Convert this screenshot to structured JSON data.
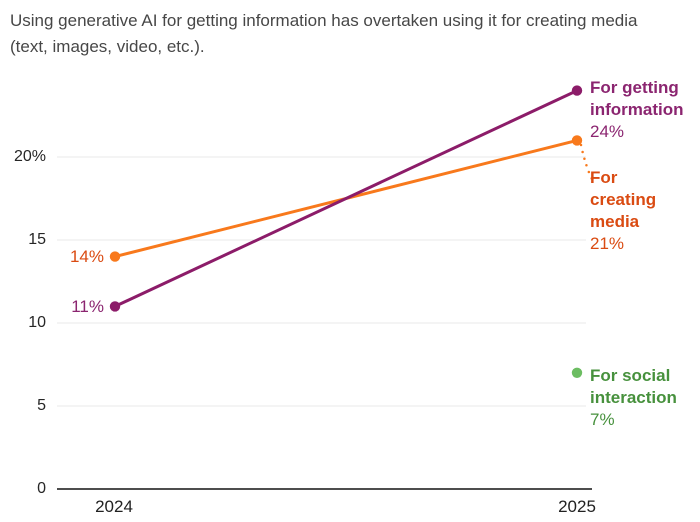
{
  "header": {
    "title_line1": "Using generative AI for getting information has overtaken using it for creating media",
    "title_line2": "(text, images, video, etc.)."
  },
  "chart_data": {
    "type": "line",
    "x": [
      "2024",
      "2025"
    ],
    "series": [
      {
        "name": "For getting information",
        "values": [
          11,
          24
        ],
        "color": "#8c1c69",
        "label_color": "#8b2570",
        "start_value_label": "11%",
        "end_value_label": "24%"
      },
      {
        "name": "For creating media",
        "values": [
          14,
          21
        ],
        "color": "#f8791c",
        "label_color": "#da4b12",
        "start_value_label": "14%",
        "end_value_label": "21%"
      },
      {
        "name": "For social interaction",
        "values": [
          null,
          7
        ],
        "color": "#6cbd62",
        "label_color": "#47913d",
        "end_value_label": "7%"
      }
    ],
    "ylim": [
      0,
      25
    ],
    "yticks": [
      {
        "value": 20,
        "label": "20%"
      },
      {
        "value": 15,
        "label": "15"
      },
      {
        "value": 10,
        "label": "10"
      },
      {
        "value": 5,
        "label": "5"
      },
      {
        "value": 0,
        "label": "0"
      }
    ],
    "xticklabels": [
      "2024",
      "2025"
    ],
    "grid": true,
    "legend_position": "right-of-line-ends",
    "colors": {
      "gridline": "#e8e8e8",
      "axis": "#4d4d4d",
      "title_text": "#474747",
      "tick_text": "#262626"
    }
  }
}
